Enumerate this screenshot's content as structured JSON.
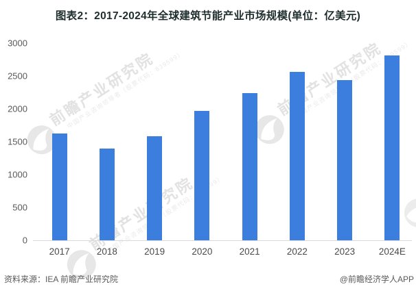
{
  "title": "图表2：2017-2024年全球建筑节能产业市场规模(单位：亿美元)",
  "chart_data": {
    "type": "bar",
    "title": "图表2：2017-2024年全球建筑节能产业市场规模(单位：亿美元)",
    "categories": [
      "2017",
      "2018",
      "2019",
      "2020",
      "2021",
      "2022",
      "2023",
      "2024E"
    ],
    "values": [
      1630,
      1400,
      1580,
      1970,
      2240,
      2560,
      2440,
      2810
    ],
    "unit": "亿美元",
    "xlabel": "",
    "ylabel": "",
    "ylim": [
      0,
      3000
    ],
    "yticks": [
      0,
      500,
      1000,
      1500,
      2000,
      2500,
      3000
    ],
    "grid": false,
    "legend": null,
    "bar_color": "#3B7EDE"
  },
  "footer": {
    "source": "资料来源：IEA 前瞻产业研究院",
    "credit": "@前瞻经济学人APP"
  },
  "watermark": {
    "big": "前瞻产业研究院",
    "small": "中国产业咨询领导者（股票代码：839599）"
  },
  "colors": {
    "bar": "#3B7EDE",
    "axis_line": "#D9D9D9",
    "y_tick_label": "#595959",
    "x_tick_label": "#4A4A4A",
    "title": "#1F2D2D",
    "footer": "#595959",
    "watermark_big": "#E2E2E2",
    "watermark_small": "#EAEAEA"
  }
}
